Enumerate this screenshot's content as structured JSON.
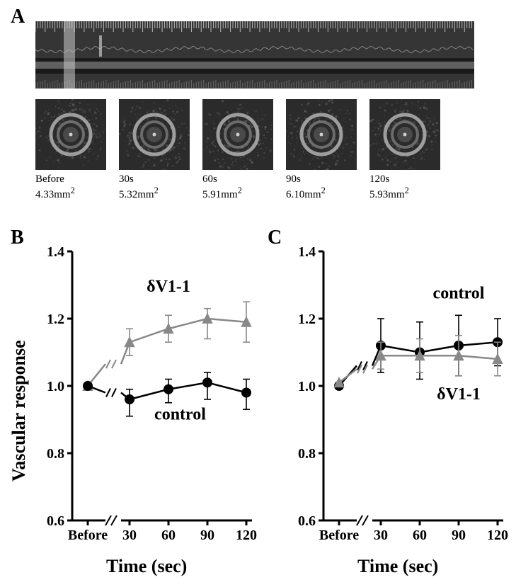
{
  "panelA": {
    "label": "A",
    "trace": {
      "bg_color": "#353535",
      "band_color": "#606060",
      "shadow_color": "#1a1a1a",
      "top_tick_color": "#b8b8b8",
      "bottom_tick_color": "#9a9a9a",
      "event_color": "#c8c8c8"
    },
    "thumbs": [
      {
        "time": "Before",
        "area": "4.33mm",
        "sup": "2"
      },
      {
        "time": "30s",
        "area": "5.32mm",
        "sup": "2"
      },
      {
        "time": "60s",
        "area": "5.91mm",
        "sup": "2"
      },
      {
        "time": "90s",
        "area": "6.10mm",
        "sup": "2"
      },
      {
        "time": "120s",
        "area": "5.93mm",
        "sup": "2"
      }
    ],
    "thumb_style": {
      "bg": "#2b2b2b",
      "noise": "#5b5b5b",
      "ring_outer": "#aaaaaa",
      "ring_inner": "#777777",
      "center": "#4a4a4a",
      "dot": "#cfcfcf"
    }
  },
  "panelB": {
    "label": "B",
    "ylabel": "Vascular response",
    "xlabel": "Time (sec)",
    "ylim": [
      0.6,
      1.4
    ],
    "yticks": [
      0.6,
      0.8,
      1.0,
      1.2,
      1.4
    ],
    "xcats": [
      "Before",
      "30",
      "60",
      "90",
      "120"
    ],
    "break_after_index": 0,
    "series": [
      {
        "name": "δV1-1",
        "color": "#888888",
        "marker": "triangle",
        "label_pos": {
          "x": 2.0,
          "y": 1.28
        },
        "points": [
          {
            "x": 0,
            "y": 1.0,
            "lo": 1.0,
            "hi": 1.0
          },
          {
            "x": 1,
            "y": 1.13,
            "lo": 1.09,
            "hi": 1.17
          },
          {
            "x": 2,
            "y": 1.17,
            "lo": 1.13,
            "hi": 1.21
          },
          {
            "x": 3,
            "y": 1.2,
            "lo": 1.14,
            "hi": 1.23
          },
          {
            "x": 4,
            "y": 1.19,
            "lo": 1.13,
            "hi": 1.25
          }
        ]
      },
      {
        "name": "control",
        "color": "#000000",
        "marker": "circle",
        "label_pos": {
          "x": 2.3,
          "y": 0.9
        },
        "points": [
          {
            "x": 0,
            "y": 1.0,
            "lo": 1.0,
            "hi": 1.0
          },
          {
            "x": 1,
            "y": 0.96,
            "lo": 0.91,
            "hi": 0.99
          },
          {
            "x": 2,
            "y": 0.99,
            "lo": 0.95,
            "hi": 1.02
          },
          {
            "x": 3,
            "y": 1.01,
            "lo": 0.96,
            "hi": 1.04
          },
          {
            "x": 4,
            "y": 0.98,
            "lo": 0.93,
            "hi": 1.02
          }
        ]
      }
    ]
  },
  "panelC": {
    "label": "C",
    "xlabel": "Time (sec)",
    "ylim": [
      0.6,
      1.4
    ],
    "yticks": [
      0.6,
      0.8,
      1.0,
      1.2,
      1.4
    ],
    "xcats": [
      "Before",
      "30",
      "60",
      "90",
      "120"
    ],
    "break_after_index": 0,
    "series": [
      {
        "name": "control",
        "color": "#000000",
        "marker": "circle",
        "label_pos": {
          "x": 2.8,
          "y": 1.26
        },
        "points": [
          {
            "x": 0,
            "y": 1.0,
            "lo": 1.0,
            "hi": 1.0
          },
          {
            "x": 1,
            "y": 1.12,
            "lo": 1.04,
            "hi": 1.2
          },
          {
            "x": 2,
            "y": 1.1,
            "lo": 1.02,
            "hi": 1.19
          },
          {
            "x": 3,
            "y": 1.12,
            "lo": 1.03,
            "hi": 1.21
          },
          {
            "x": 4,
            "y": 1.13,
            "lo": 1.06,
            "hi": 1.2
          }
        ]
      },
      {
        "name": "δV1-1",
        "color": "#888888",
        "marker": "triangle",
        "label_pos": {
          "x": 2.8,
          "y": 0.96
        },
        "points": [
          {
            "x": 0,
            "y": 1.01,
            "lo": 1.01,
            "hi": 1.01
          },
          {
            "x": 1,
            "y": 1.09,
            "lo": 1.05,
            "hi": 1.13
          },
          {
            "x": 2,
            "y": 1.09,
            "lo": 1.04,
            "hi": 1.14
          },
          {
            "x": 3,
            "y": 1.09,
            "lo": 1.03,
            "hi": 1.15
          },
          {
            "x": 4,
            "y": 1.08,
            "lo": 1.03,
            "hi": 1.13
          }
        ]
      }
    ]
  },
  "chart_style": {
    "axis_color": "#000000",
    "axis_width": 3,
    "tick_len": 7,
    "tick_font": 20,
    "label_font": 26,
    "series_label_font": 24,
    "marker_size": 7,
    "line_width": 2.5,
    "err_width": 1.6
  }
}
